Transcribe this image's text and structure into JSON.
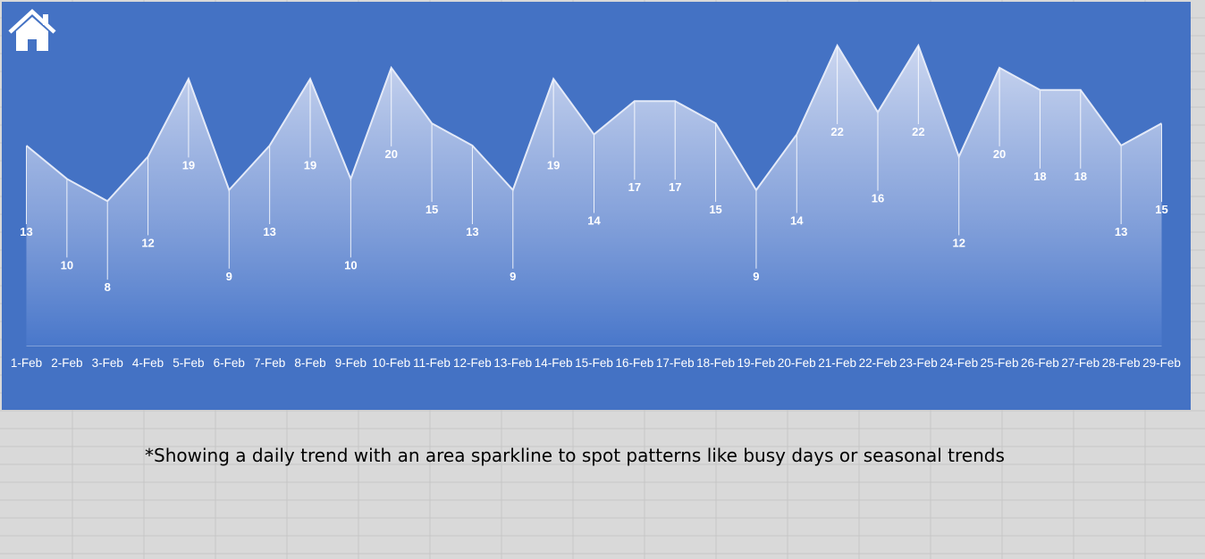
{
  "caption": "*Showing a daily trend with an area sparkline to spot patterns like busy days or seasonal trends",
  "home_button": {
    "icon": "home-icon"
  },
  "colors": {
    "panel": "#4472c4",
    "background": "#d9d9d9",
    "area_top": "#c5d0ee",
    "area_bottom": "#4f7bcb",
    "text": "#ffffff"
  },
  "chart_data": {
    "type": "area",
    "categories": [
      "1-Feb",
      "2-Feb",
      "3-Feb",
      "4-Feb",
      "5-Feb",
      "6-Feb",
      "7-Feb",
      "8-Feb",
      "9-Feb",
      "10-Feb",
      "11-Feb",
      "12-Feb",
      "13-Feb",
      "14-Feb",
      "15-Feb",
      "16-Feb",
      "17-Feb",
      "18-Feb",
      "19-Feb",
      "20-Feb",
      "21-Feb",
      "22-Feb",
      "23-Feb",
      "24-Feb",
      "25-Feb",
      "26-Feb",
      "27-Feb",
      "28-Feb",
      "29-Feb"
    ],
    "values": [
      13,
      10,
      8,
      12,
      19,
      9,
      13,
      19,
      10,
      20,
      15,
      13,
      9,
      19,
      14,
      17,
      17,
      15,
      9,
      14,
      22,
      16,
      22,
      12,
      20,
      18,
      18,
      13,
      15
    ],
    "ylim": [
      -5,
      22
    ],
    "title": "",
    "xlabel": "",
    "ylabel": "",
    "grid": false,
    "legend": "none"
  }
}
